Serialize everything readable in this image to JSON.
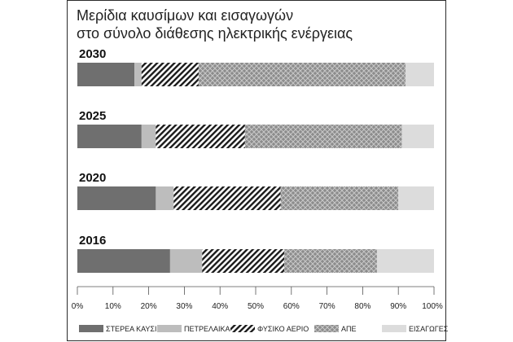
{
  "title_line1": "Μερίδια καυσίμων και εισαγωγών",
  "title_line2": "στο σύνολο διάθεσης ηλεκτρικής ενέργειας",
  "chart_data": {
    "type": "bar",
    "orientation": "horizontal",
    "stacked": true,
    "title": "Μερίδια καυσίμων και εισαγωγών στο σύνολο διάθεσης ηλεκτρικής ενέργειας",
    "categories": [
      "2030",
      "2025",
      "2020",
      "2016"
    ],
    "series": [
      {
        "name": "ΣΤΕΡΕΑ ΚΑΥΣΙΜΑ",
        "values": [
          16,
          18,
          22,
          26
        ],
        "color": "#6f6f6f",
        "pattern": "solid-dark"
      },
      {
        "name": "ΠΕΤΡΕΛΑΙΚΑ",
        "values": [
          2,
          4,
          5,
          9
        ],
        "color": "#bdbdbd",
        "pattern": "solid-light"
      },
      {
        "name": "ΦΥΣΙΚΟ ΑΕΡΙΟ",
        "values": [
          16,
          25,
          30,
          23
        ],
        "color": "#1a1a1a",
        "pattern": "diagonal-stripes"
      },
      {
        "name": "ΑΠΕ",
        "values": [
          58,
          44,
          33,
          26
        ],
        "color": "#9a9a9a",
        "pattern": "crosshatch"
      },
      {
        "name": "ΕΙΣΑΓΩΓΕΣ",
        "values": [
          8,
          9,
          10,
          16
        ],
        "color": "#dcdcdc",
        "pattern": "solid-lightest"
      }
    ],
    "x_ticks": [
      "0%",
      "10%",
      "20%",
      "30%",
      "40%",
      "50%",
      "60%",
      "70%",
      "80%",
      "90%",
      "100%"
    ],
    "xlim": [
      0,
      100
    ],
    "unit": "%",
    "grid": false,
    "legend_position": "bottom"
  }
}
